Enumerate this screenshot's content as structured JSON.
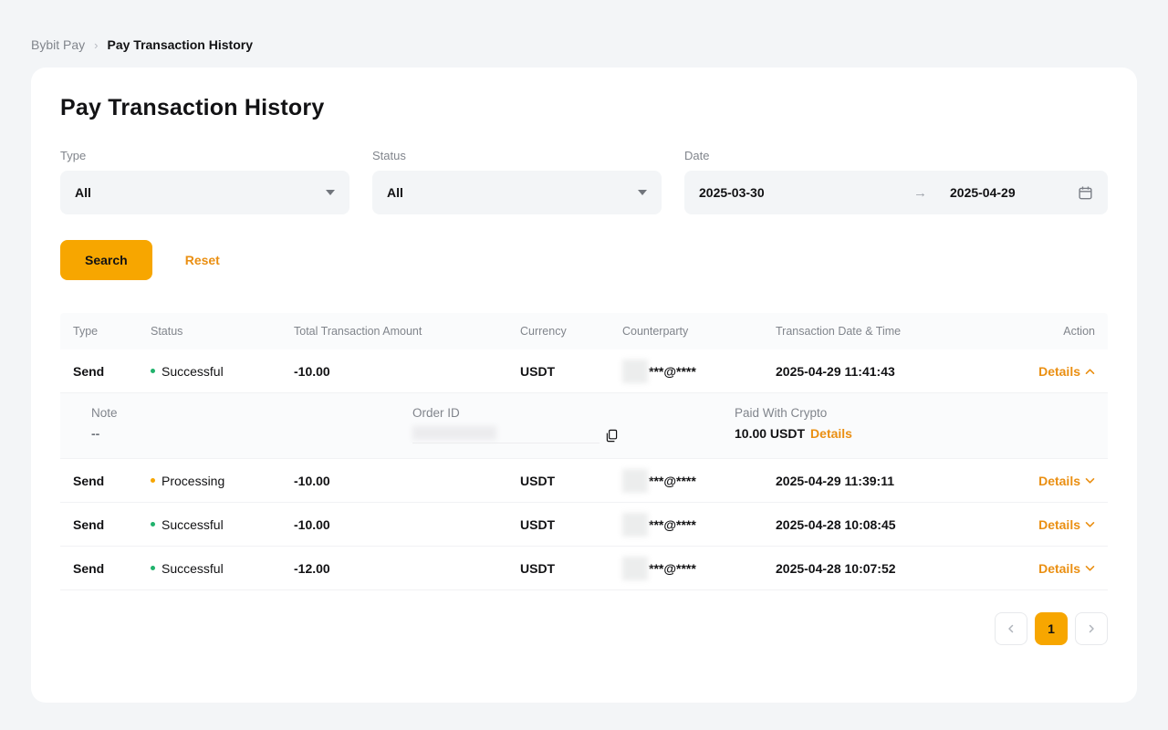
{
  "breadcrumb": {
    "parent": "Bybit Pay",
    "separator": "›",
    "current": "Pay Transaction History"
  },
  "page": {
    "title": "Pay Transaction History"
  },
  "filters": {
    "type": {
      "label": "Type",
      "value": "All"
    },
    "status": {
      "label": "Status",
      "value": "All"
    },
    "date": {
      "label": "Date",
      "start": "2025-03-30",
      "end": "2025-04-29",
      "arrow": "→"
    }
  },
  "actions": {
    "search": "Search",
    "reset": "Reset"
  },
  "table": {
    "headers": [
      "Type",
      "Status",
      "Total Transaction Amount",
      "Currency",
      "Counterparty",
      "Transaction Date & Time",
      "Action"
    ],
    "rows": [
      {
        "type": "Send",
        "status": "Successful",
        "status_color": "#20b26c",
        "amount": "-10.00",
        "currency": "USDT",
        "counterparty": "***@****",
        "datetime": "2025-04-29 11:41:43",
        "action": "Details",
        "expanded": true
      },
      {
        "type": "Send",
        "status": "Processing",
        "status_color": "#f7a600",
        "amount": "-10.00",
        "currency": "USDT",
        "counterparty": "***@****",
        "datetime": "2025-04-29 11:39:11",
        "action": "Details",
        "expanded": false
      },
      {
        "type": "Send",
        "status": "Successful",
        "status_color": "#20b26c",
        "amount": "-10.00",
        "currency": "USDT",
        "counterparty": "***@****",
        "datetime": "2025-04-28 10:08:45",
        "action": "Details",
        "expanded": false
      },
      {
        "type": "Send",
        "status": "Successful",
        "status_color": "#20b26c",
        "amount": "-12.00",
        "currency": "USDT",
        "counterparty": "***@****",
        "datetime": "2025-04-28 10:07:52",
        "action": "Details",
        "expanded": false
      }
    ],
    "expanded_detail": {
      "note_label": "Note",
      "note_value": "--",
      "order_id_label": "Order ID",
      "paid_label": "Paid With Crypto",
      "paid_value": "10.00 USDT",
      "paid_link": "Details"
    }
  },
  "pagination": {
    "current_page": "1"
  },
  "colors": {
    "accent": "#f7a600",
    "link": "#ea8f12",
    "success": "#20b26c",
    "processing": "#f7a600"
  }
}
